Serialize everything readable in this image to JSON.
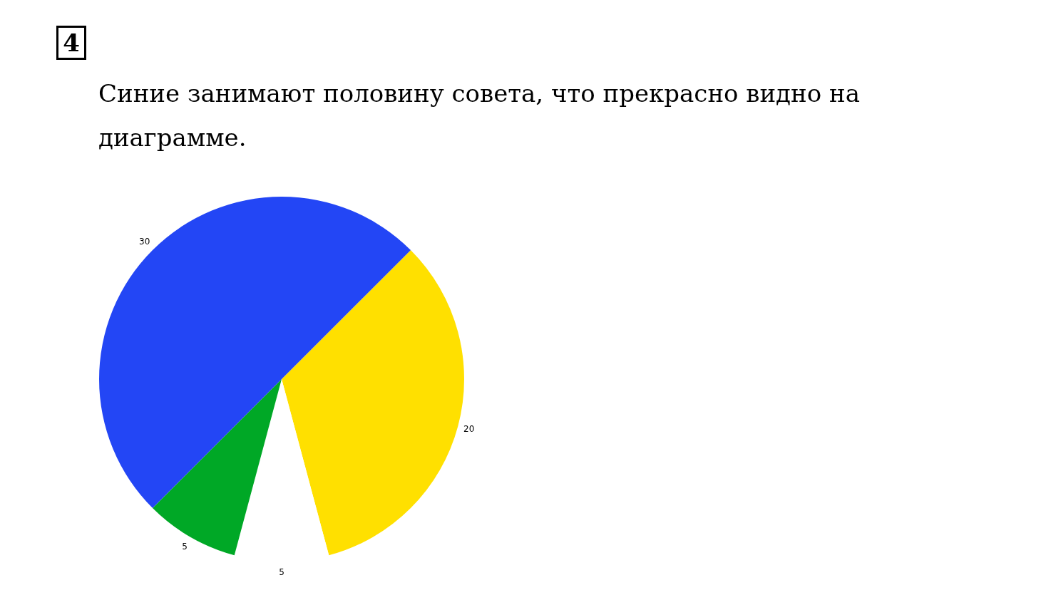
{
  "chart_data": {
    "type": "pie",
    "title": "Синие занимают половину совета, что прекрасно видно на диаграмме.",
    "annotations": [
      "4"
    ],
    "categories": [
      null,
      null,
      null,
      null
    ],
    "values": [
      20,
      5,
      5,
      30
    ],
    "colors": [
      "#ffe000",
      "#ffffff",
      "#00a826",
      "#2346f5"
    ],
    "data_labels": true
  }
}
